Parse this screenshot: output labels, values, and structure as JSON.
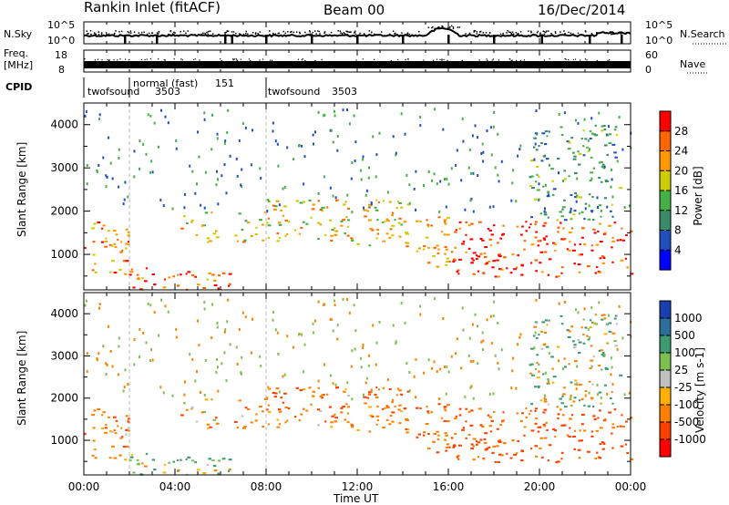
{
  "header": {
    "station": "Rankin Inlet (fitACF)",
    "beam": "Beam 00",
    "date": "16/Dec/2014"
  },
  "noise_panel": {
    "left_label": "N.Sky",
    "left_ticks": [
      "10^5",
      "10^0"
    ],
    "right_label": "N.Search",
    "right_ticks": [
      "10^5",
      "10^0"
    ]
  },
  "freq_panel": {
    "left_label_1": "Freq.",
    "left_label_2": "[MHz]",
    "left_ticks": [
      "18",
      "8"
    ],
    "right_label": "Nave",
    "right_ticks": [
      "60",
      "0"
    ]
  },
  "cpid_panel": {
    "label": "CPID",
    "modes": [
      {
        "name": "twofsound",
        "id": "3503"
      },
      {
        "name": "normal (fast)",
        "id": "151"
      },
      {
        "name": "twofsound",
        "id": "3503"
      }
    ]
  },
  "x_axis": {
    "label": "Time UT",
    "ticks": [
      "00:00",
      "04:00",
      "08:00",
      "12:00",
      "16:00",
      "20:00",
      "00:00"
    ]
  },
  "y_axis": {
    "label": "Slant Range [km]",
    "ticks": [
      "1000",
      "2000",
      "3000",
      "4000"
    ]
  },
  "power_colorbar": {
    "label": "Power [dB]",
    "ticks": [
      "4",
      "8",
      "12",
      "16",
      "20",
      "24",
      "28"
    ],
    "colors": [
      "#0000ff",
      "#2050c0",
      "#3a8a6a",
      "#46b046",
      "#cccc00",
      "#ff9900",
      "#ff6600",
      "#ff0000"
    ]
  },
  "velocity_colorbar": {
    "label": "Velocity [m s-1]",
    "ticks": [
      "1000",
      "500",
      "100",
      "25",
      "-25",
      "-100",
      "-500",
      "-1000"
    ],
    "colors": [
      "#1a3fb0",
      "#2e6e9a",
      "#3e9a70",
      "#7cc050",
      "#c0c0c0",
      "#ffb000",
      "#ff8000",
      "#ff4000",
      "#ff0000"
    ]
  },
  "chart_data": {
    "type": "heatmap",
    "x_range_hours": [
      0,
      24
    ],
    "y_range_km": [
      180,
      4500
    ],
    "panels": [
      "Power [dB]",
      "Velocity [m s-1]"
    ],
    "echo_regions": [
      {
        "t_start": 0.0,
        "t_end": 2.0,
        "r_min": 500,
        "r_max": 1800,
        "power_db": 24,
        "velocity": -300
      },
      {
        "t_start": 1.8,
        "t_end": 6.5,
        "r_min": 200,
        "r_max": 700,
        "power_db": 26,
        "velocity": 120
      },
      {
        "t_start": 4.2,
        "t_end": 7.8,
        "r_min": 1300,
        "r_max": 2000,
        "power_db": 18,
        "velocity": -250
      },
      {
        "t_start": 7.8,
        "t_end": 14.2,
        "r_min": 1200,
        "r_max": 2300,
        "power_db": 20,
        "velocity": -350
      },
      {
        "t_start": 14.5,
        "t_end": 16.0,
        "r_min": 700,
        "r_max": 1900,
        "power_db": 22,
        "velocity": -450
      },
      {
        "t_start": 16.0,
        "t_end": 24.0,
        "r_min": 500,
        "r_max": 1800,
        "power_db": 28,
        "velocity": -600
      },
      {
        "t_start": 19.5,
        "t_end": 23.5,
        "r_min": 1800,
        "r_max": 4000,
        "power_db": 12,
        "velocity": 80
      }
    ]
  }
}
